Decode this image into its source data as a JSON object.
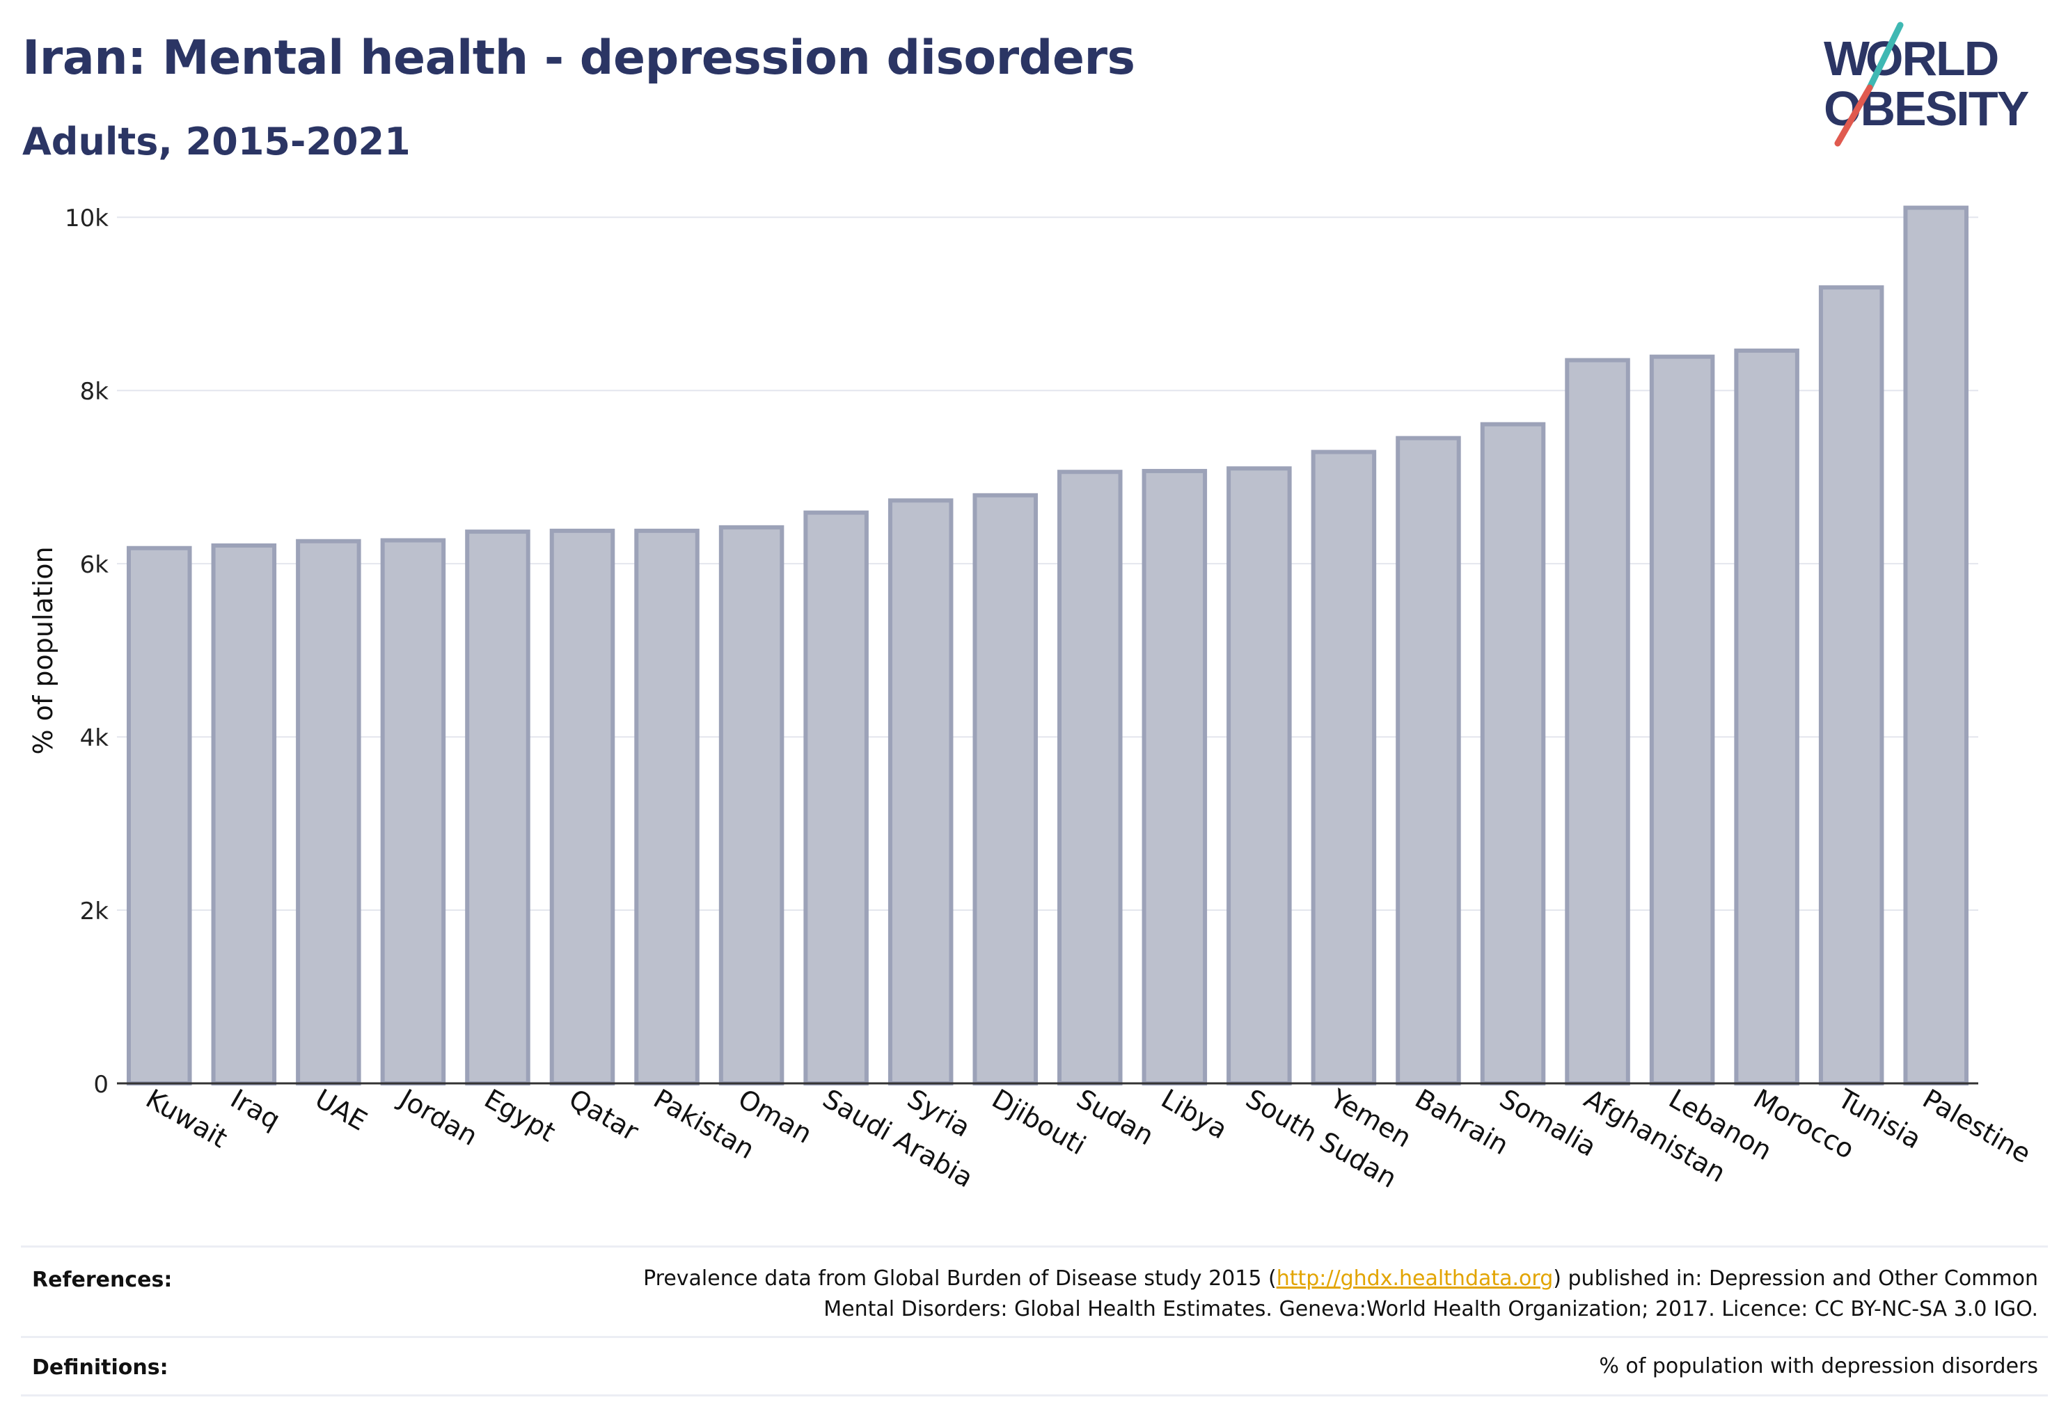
{
  "title": "Iran: Mental health - depression disorders",
  "subtitle": "Adults, 2015-2021",
  "logo": {
    "line1": "W",
    "line1b": "RLD",
    "line2": "OBESITY",
    "text": "WORLD OBESITY",
    "colors": {
      "text": "#2b3564",
      "slash_teal": "#3fb8b3",
      "slash_red": "#e05a4f"
    }
  },
  "chart_data": {
    "type": "bar",
    "ylabel": "% of population",
    "xlabel": "",
    "ylim": [
      0,
      10500
    ],
    "yticks": [
      0,
      2000,
      4000,
      6000,
      8000,
      10000
    ],
    "ytick_labels": [
      "0",
      "2k",
      "4k",
      "6k",
      "8k",
      "10k"
    ],
    "grid": true,
    "categories": [
      "Kuwait",
      "Iraq",
      "UAE",
      "Jordan",
      "Egypt",
      "Qatar",
      "Pakistan",
      "Oman",
      "Saudi Arabia",
      "Syria",
      "Djibouti",
      "Sudan",
      "Libya",
      "South Sudan",
      "Yemen",
      "Bahrain",
      "Somalia",
      "Afghanistan",
      "Lebanon",
      "Morocco",
      "Tunisia",
      "Palestine"
    ],
    "values": [
      6180,
      6210,
      6260,
      6270,
      6370,
      6380,
      6380,
      6420,
      6590,
      6730,
      6790,
      7060,
      7070,
      7100,
      7290,
      7450,
      7610,
      8350,
      8390,
      8460,
      9190,
      10110
    ],
    "colors": {
      "bar_fill": "#bcc0cd",
      "bar_stroke": "#9ca2b8",
      "grid": "#e4e6ee",
      "axis": "#333333"
    }
  },
  "footer": {
    "references_label": "References:",
    "references_line1_pre": "Prevalence data from Global Burden of Disease study 2015 (",
    "references_link": "http://ghdx.healthdata.org",
    "references_line1_post": ") published in: Depression and Other Common",
    "references_line2": "Mental Disorders: Global Health Estimates. Geneva:World Health Organization; 2017. Licence: CC BY-NC-SA 3.0 IGO.",
    "definitions_label": "Definitions:",
    "definitions_text": "% of population with depression disorders"
  }
}
